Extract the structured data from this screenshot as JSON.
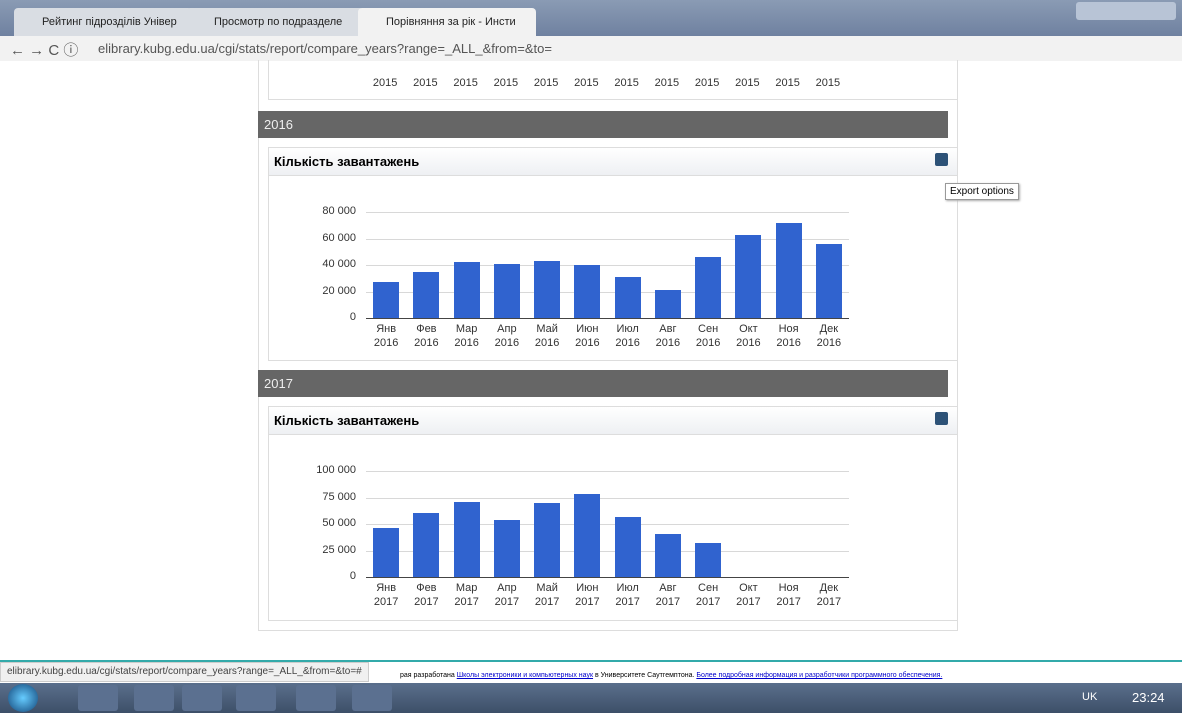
{
  "browser": {
    "tabs": [
      "Рейтинг підрозділів Універ",
      "Просмотр по подразделе",
      "Порівняння за рік - Инсти"
    ],
    "url": "elibrary.kubg.edu.ua/cgi/stats/report/compare_years?range=_ALL_&from=&to=",
    "status_url": "elibrary.kubg.edu.ua/cgi/stats/report/compare_years?range=_ALL_&from=&to=#"
  },
  "page": {
    "previous_chart_labels": [
      "2015",
      "2015",
      "2015",
      "2015",
      "2015",
      "2015",
      "2015",
      "2015",
      "2015",
      "2015",
      "2015",
      "2015"
    ],
    "sections": [
      "2016",
      "2017"
    ],
    "export_tooltip": "Export options",
    "footer": {
      "prefix": "рая разработана",
      "link1": "Школы электроники и компьютерных наук",
      "middle": "в Университете Саутгемптона.",
      "link2": "Более подробная информация и разработчики программного обеспечения."
    }
  },
  "taskbar": {
    "language": "UK",
    "time": "23:24"
  },
  "chart_data": [
    {
      "type": "bar",
      "title": "Кількість завантажень",
      "categories": [
        "Янв 2016",
        "Фев 2016",
        "Мар 2016",
        "Апр 2016",
        "Май 2016",
        "Июн 2016",
        "Июл 2016",
        "Авг 2016",
        "Сен 2016",
        "Окт 2016",
        "Ноя 2016",
        "Дек 2016"
      ],
      "values": [
        27000,
        35000,
        42000,
        41000,
        43000,
        40000,
        31000,
        21000,
        46000,
        62500,
        72000,
        56000
      ],
      "color": "#3063cf",
      "ylim": [
        0,
        80000
      ],
      "yticks": [
        0,
        {
          "value": 20000,
          "label": "20 000"
        },
        {
          "value": 40000,
          "label": "40 000"
        },
        {
          "value": 60000,
          "label": "60 000"
        },
        {
          "value": 80000,
          "label": "80 000"
        }
      ],
      "grid": true
    },
    {
      "type": "bar",
      "title": "Кількість завантажень",
      "categories": [
        "Янв 2017",
        "Фев 2017",
        "Мар 2017",
        "Апр 2017",
        "Май 2017",
        "Июн 2017",
        "Июл 2017",
        "Авг 2017",
        "Сен 2017",
        "Окт 2017",
        "Ноя 2017",
        "Дек 2017"
      ],
      "values": [
        46000,
        60000,
        71000,
        54000,
        70000,
        78500,
        57000,
        41000,
        32000,
        0,
        0,
        0
      ],
      "color": "#3063cf",
      "ylim": [
        0,
        100000
      ],
      "yticks": [
        0,
        {
          "value": 25000,
          "label": "25 000"
        },
        {
          "value": 50000,
          "label": "50 000"
        },
        {
          "value": 75000,
          "label": "75 000"
        },
        {
          "value": 100000,
          "label": "100 000"
        }
      ],
      "grid": true
    }
  ]
}
